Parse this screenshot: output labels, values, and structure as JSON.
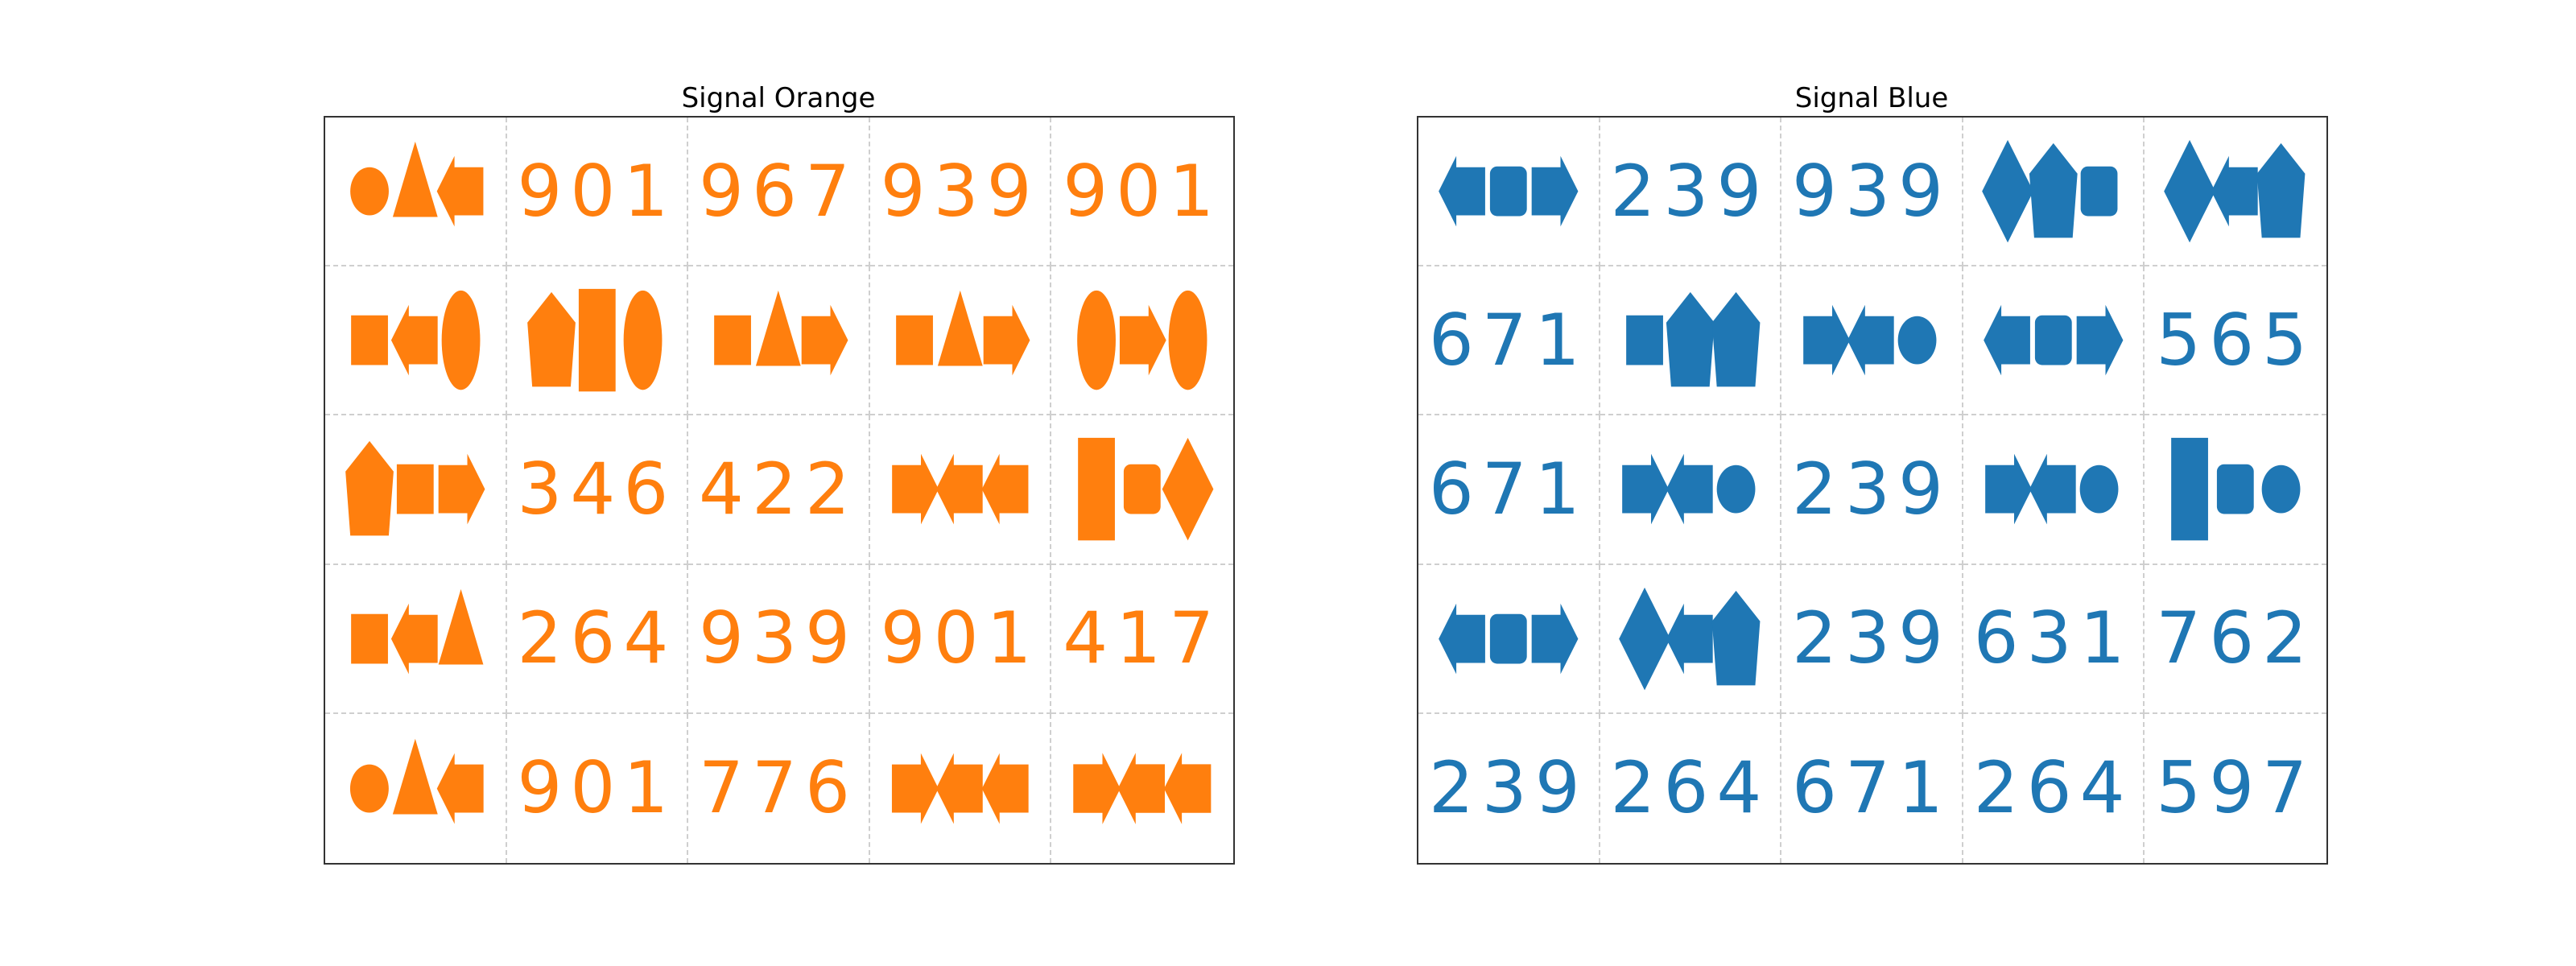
{
  "colors": {
    "orange": "#ff7f0e",
    "blue": "#1f77b4"
  },
  "panels": [
    {
      "title": "Signal Orange",
      "color": "orange",
      "cells": [
        [
          {
            "shapes": [
              "circle",
              "triangle",
              "arrow-left"
            ]
          },
          {
            "number": "901"
          },
          {
            "number": "967"
          },
          {
            "number": "939"
          },
          {
            "number": "901"
          }
        ],
        [
          {
            "shapes": [
              "square",
              "arrow-left",
              "ellipse"
            ]
          },
          {
            "shapes": [
              "pentagon",
              "rect-tall",
              "ellipse"
            ]
          },
          {
            "shapes": [
              "square",
              "triangle",
              "arrow-right"
            ]
          },
          {
            "shapes": [
              "square",
              "triangle",
              "arrow-right"
            ]
          },
          {
            "shapes": [
              "ellipse",
              "arrow-right",
              "ellipse"
            ]
          }
        ],
        [
          {
            "shapes": [
              "pentagon",
              "square",
              "arrow-right"
            ]
          },
          {
            "number": "346"
          },
          {
            "number": "422"
          },
          {
            "shapes": [
              "arrow-right",
              "arrow-left",
              "arrow-left"
            ]
          },
          {
            "shapes": [
              "rect-tall",
              "rounded-square",
              "diamond"
            ]
          }
        ],
        [
          {
            "shapes": [
              "square",
              "arrow-left",
              "triangle"
            ]
          },
          {
            "number": "264"
          },
          {
            "number": "939"
          },
          {
            "number": "901"
          },
          {
            "number": "417"
          }
        ],
        [
          {
            "shapes": [
              "circle",
              "triangle",
              "arrow-left"
            ]
          },
          {
            "number": "901"
          },
          {
            "number": "776"
          },
          {
            "shapes": [
              "arrow-right",
              "arrow-left",
              "arrow-left"
            ]
          },
          {
            "shapes": [
              "arrow-right",
              "arrow-left",
              "arrow-left"
            ]
          }
        ]
      ]
    },
    {
      "title": "Signal Blue",
      "color": "blue",
      "cells": [
        [
          {
            "shapes": [
              "arrow-left",
              "rounded-square",
              "arrow-right"
            ]
          },
          {
            "number": "239"
          },
          {
            "number": "939"
          },
          {
            "shapes": [
              "diamond",
              "pentagon",
              "rounded-square"
            ]
          },
          {
            "shapes": [
              "diamond",
              "arrow-left",
              "pentagon"
            ]
          }
        ],
        [
          {
            "number": "671"
          },
          {
            "shapes": [
              "square",
              "pentagon",
              "pentagon"
            ]
          },
          {
            "shapes": [
              "arrow-right",
              "arrow-left",
              "circle"
            ]
          },
          {
            "shapes": [
              "arrow-left",
              "rounded-square",
              "arrow-right"
            ]
          },
          {
            "number": "565"
          }
        ],
        [
          {
            "number": "671"
          },
          {
            "shapes": [
              "arrow-right",
              "arrow-left",
              "circle"
            ]
          },
          {
            "number": "239"
          },
          {
            "shapes": [
              "arrow-right",
              "arrow-left",
              "circle"
            ]
          },
          {
            "shapes": [
              "rect-tall",
              "rounded-square",
              "circle"
            ]
          }
        ],
        [
          {
            "shapes": [
              "arrow-left",
              "rounded-square",
              "arrow-right"
            ]
          },
          {
            "shapes": [
              "diamond",
              "arrow-left",
              "pentagon"
            ]
          },
          {
            "number": "239"
          },
          {
            "number": "631"
          },
          {
            "number": "762"
          }
        ],
        [
          {
            "number": "239"
          },
          {
            "number": "264"
          },
          {
            "number": "671"
          },
          {
            "number": "264"
          },
          {
            "number": "597"
          }
        ]
      ]
    }
  ]
}
